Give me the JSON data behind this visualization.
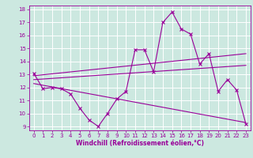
{
  "xlabel": "Windchill (Refroidissement éolien,°C)",
  "background_color": "#cce8e0",
  "line_color": "#990099",
  "grid_color": "#ffffff",
  "xlim": [
    -0.5,
    23.5
  ],
  "ylim": [
    8.7,
    18.3
  ],
  "xticks": [
    0,
    1,
    2,
    3,
    4,
    5,
    6,
    7,
    8,
    9,
    10,
    11,
    12,
    13,
    14,
    15,
    16,
    17,
    18,
    19,
    20,
    21,
    22,
    23
  ],
  "yticks": [
    9,
    10,
    11,
    12,
    13,
    14,
    15,
    16,
    17,
    18
  ],
  "series1_x": [
    0,
    1,
    2,
    3,
    4,
    5,
    6,
    7,
    8,
    9,
    10,
    11,
    12,
    13,
    14,
    15,
    16,
    17,
    18,
    19,
    20,
    21,
    22,
    23
  ],
  "series1_y": [
    13.1,
    11.9,
    12.0,
    11.9,
    11.5,
    10.4,
    9.5,
    9.0,
    10.0,
    11.1,
    11.7,
    14.9,
    14.9,
    13.2,
    17.0,
    17.8,
    16.5,
    16.1,
    13.8,
    14.6,
    11.7,
    12.6,
    11.8,
    9.2
  ],
  "series2_x": [
    0,
    23
  ],
  "series2_y": [
    12.9,
    14.6
  ],
  "series3_x": [
    0,
    23
  ],
  "series3_y": [
    12.6,
    13.7
  ],
  "series4_x": [
    0,
    23
  ],
  "series4_y": [
    12.3,
    9.3
  ],
  "xlabel_fontsize": 5.5,
  "tick_fontsize": 5.0,
  "linewidth": 0.8,
  "markersize": 2.5
}
